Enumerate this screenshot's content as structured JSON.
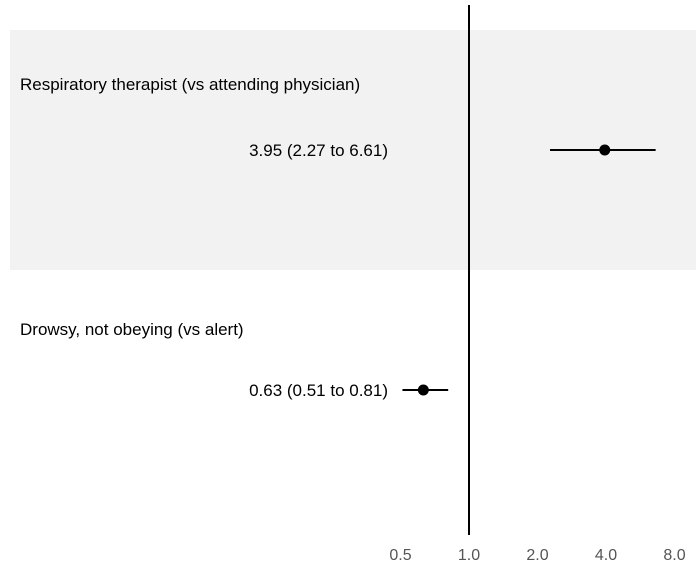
{
  "chart_data": {
    "type": "forest",
    "x_scale": "log2",
    "xlim": [
      0.5,
      8.0
    ],
    "xticks": [
      "0.5",
      "1.0",
      "2.0",
      "4.0",
      "8.0"
    ],
    "xtick_values": [
      0.5,
      1.0,
      2.0,
      4.0,
      8.0
    ],
    "reference_line": 1.0,
    "row_shading": [
      "#f2f2f2",
      "#ffffff"
    ],
    "colors": {
      "point": "#000000",
      "ref_line": "#000000",
      "tick_text": "#555555"
    },
    "rows": [
      {
        "label": "Respiratory therapist (vs attending physician)",
        "estimate": 3.95,
        "lower": 2.27,
        "upper": 6.61,
        "text": "3.95 (2.27 to 6.61)"
      },
      {
        "label": "Drowsy, not obeying (vs alert)",
        "estimate": 0.63,
        "lower": 0.51,
        "upper": 0.81,
        "text": "0.63 (0.51 to 0.81)"
      }
    ]
  }
}
